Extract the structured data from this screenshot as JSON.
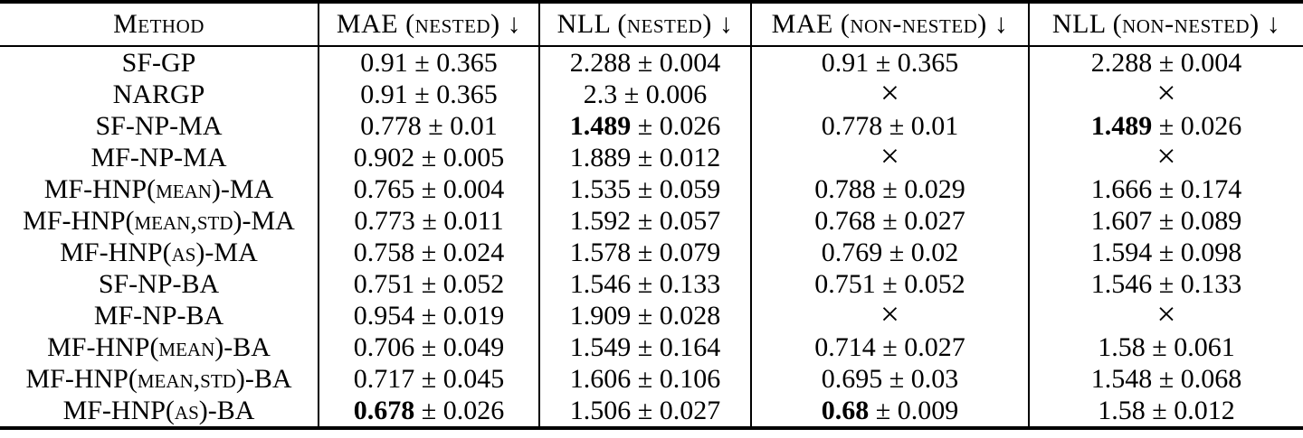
{
  "table": {
    "pm_symbol": "±",
    "missing_symbol": "×",
    "columns": [
      {
        "label": "Method"
      },
      {
        "label": "MAE (nested) ↓"
      },
      {
        "label": "NLL (nested) ↓"
      },
      {
        "label": "MAE (non-nested) ↓"
      },
      {
        "label": "NLL (non-nested) ↓"
      }
    ],
    "rows": [
      {
        "method": "SF-GP",
        "cells": [
          {
            "mean": "0.91",
            "err": "0.365"
          },
          {
            "mean": "2.288",
            "err": "0.004"
          },
          {
            "mean": "0.91",
            "err": "0.365"
          },
          {
            "mean": "2.288",
            "err": "0.004"
          }
        ]
      },
      {
        "method": "NARGP",
        "cells": [
          {
            "mean": "0.91",
            "err": "0.365"
          },
          {
            "mean": "2.3",
            "err": "0.006"
          },
          {
            "missing": true
          },
          {
            "missing": true
          }
        ]
      },
      {
        "method": "SF-NP-MA",
        "cells": [
          {
            "mean": "0.778",
            "err": "0.01"
          },
          {
            "mean": "1.489",
            "err": "0.026",
            "bold_mean": true
          },
          {
            "mean": "0.778",
            "err": "0.01"
          },
          {
            "mean": "1.489",
            "err": "0.026",
            "bold_mean": true
          }
        ]
      },
      {
        "method": "MF-NP-MA",
        "cells": [
          {
            "mean": "0.902",
            "err": "0.005"
          },
          {
            "mean": "1.889",
            "err": "0.012"
          },
          {
            "missing": true
          },
          {
            "missing": true
          }
        ]
      },
      {
        "method": "MF-HNP(mean)-MA",
        "cells": [
          {
            "mean": "0.765",
            "err": "0.004"
          },
          {
            "mean": "1.535",
            "err": "0.059"
          },
          {
            "mean": "0.788",
            "err": "0.029"
          },
          {
            "mean": "1.666",
            "err": "0.174"
          }
        ]
      },
      {
        "method": "MF-HNP(mean,std)-MA",
        "cells": [
          {
            "mean": "0.773",
            "err": "0.011"
          },
          {
            "mean": "1.592",
            "err": "0.057"
          },
          {
            "mean": "0.768",
            "err": "0.027"
          },
          {
            "mean": "1.607",
            "err": "0.089"
          }
        ]
      },
      {
        "method": "MF-HNP(as)-MA",
        "cells": [
          {
            "mean": "0.758",
            "err": "0.024"
          },
          {
            "mean": "1.578",
            "err": "0.079"
          },
          {
            "mean": "0.769",
            "err": "0.02"
          },
          {
            "mean": "1.594",
            "err": "0.098"
          }
        ]
      },
      {
        "method": "SF-NP-BA",
        "cells": [
          {
            "mean": "0.751",
            "err": "0.052"
          },
          {
            "mean": "1.546",
            "err": "0.133"
          },
          {
            "mean": "0.751",
            "err": "0.052"
          },
          {
            "mean": "1.546",
            "err": "0.133"
          }
        ]
      },
      {
        "method": "MF-NP-BA",
        "cells": [
          {
            "mean": "0.954",
            "err": "0.019"
          },
          {
            "mean": "1.909",
            "err": "0.028"
          },
          {
            "missing": true
          },
          {
            "missing": true
          }
        ]
      },
      {
        "method": "MF-HNP(mean)-BA",
        "cells": [
          {
            "mean": "0.706",
            "err": "0.049"
          },
          {
            "mean": "1.549",
            "err": "0.164"
          },
          {
            "mean": "0.714",
            "err": "0.027"
          },
          {
            "mean": "1.58",
            "err": "0.061"
          }
        ]
      },
      {
        "method": "MF-HNP(mean,std)-BA",
        "cells": [
          {
            "mean": "0.717",
            "err": "0.045"
          },
          {
            "mean": "1.606",
            "err": "0.106"
          },
          {
            "mean": "0.695",
            "err": "0.03"
          },
          {
            "mean": "1.548",
            "err": "0.068"
          }
        ]
      },
      {
        "method": "MF-HNP(as)-BA",
        "cells": [
          {
            "mean": "0.678",
            "err": "0.026",
            "bold_mean": true
          },
          {
            "mean": "1.506",
            "err": "0.027"
          },
          {
            "mean": "0.68",
            "err": "0.009",
            "bold_mean": true
          },
          {
            "mean": "1.58",
            "err": "0.012"
          }
        ]
      }
    ]
  }
}
